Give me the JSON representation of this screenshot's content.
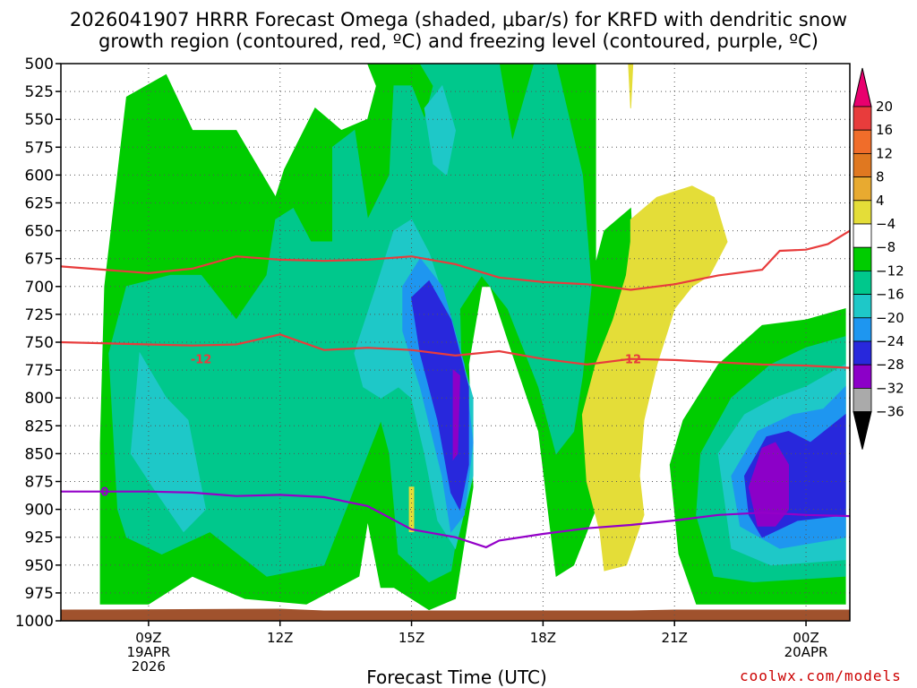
{
  "title_line1": "2026041907 HRRR Forecast Omega (shaded, μbar/s) for KRFD with dendritic snow",
  "title_line2": "growth region (contoured, red, ºC) and freezing level (contoured, purple, ºC)",
  "xlabel": "Forecast Time (UTC)",
  "credit": "coolwx.com/models",
  "chart_data": {
    "type": "heatmap",
    "y_ticks": [
      500,
      525,
      550,
      575,
      600,
      625,
      650,
      675,
      700,
      725,
      750,
      775,
      800,
      825,
      850,
      875,
      900,
      925,
      950,
      975,
      1000
    ],
    "y_inverted": true,
    "ylim": [
      500,
      1000
    ],
    "x_range_hours": [
      7,
      25
    ],
    "x_ticks": [
      {
        "hour": 9,
        "line1": "09Z",
        "line2": "19APR",
        "line3": "2026"
      },
      {
        "hour": 12,
        "line1": "12Z",
        "line2": "",
        "line3": ""
      },
      {
        "hour": 15,
        "line1": "15Z",
        "line2": "",
        "line3": ""
      },
      {
        "hour": 18,
        "line1": "18Z",
        "line2": "",
        "line3": ""
      },
      {
        "hour": 21,
        "line1": "21Z",
        "line2": "",
        "line3": ""
      },
      {
        "hour": 24,
        "line1": "00Z",
        "line2": "20APR",
        "line3": ""
      }
    ],
    "grid": true,
    "colorbar": {
      "position": "right",
      "labels": [
        "20",
        "16",
        "12",
        "8",
        "4",
        "−4",
        "−8",
        "−12",
        "−16",
        "−20",
        "−24",
        "−28",
        "−32",
        "−36"
      ],
      "colors": [
        "#e8006e",
        "#e83c3c",
        "#f06d2a",
        "#e07820",
        "#e8aa30",
        "#e4dd38",
        "#ffffff",
        "#00cc00",
        "#00c88c",
        "#1ec8c8",
        "#1e96f0",
        "#2828dc",
        "#8c00c8",
        "#aaaaaa",
        "#000000"
      ]
    },
    "omega_regions": [
      {
        "level": "-4",
        "color": "#00cc00",
        "points": [
          [
            7.9,
            960
          ],
          [
            7.9,
            840
          ],
          [
            8.0,
            700
          ],
          [
            8.5,
            530
          ],
          [
            9.4,
            510
          ],
          [
            10.0,
            560
          ],
          [
            11.0,
            560
          ],
          [
            11.9,
            620
          ],
          [
            12.1,
            595
          ],
          [
            12.8,
            540
          ],
          [
            13.4,
            560
          ],
          [
            14.0,
            550
          ],
          [
            14.2,
            520
          ],
          [
            14.0,
            500
          ],
          [
            19.2,
            500
          ],
          [
            19.2,
            680
          ],
          [
            19.4,
            650
          ],
          [
            20.0,
            630
          ],
          [
            20.1,
            720
          ],
          [
            19.7,
            820
          ],
          [
            19.2,
            900
          ],
          [
            18.7,
            950
          ],
          [
            18.3,
            960
          ],
          [
            17.9,
            830
          ],
          [
            17.3,
            760
          ],
          [
            16.8,
            700
          ],
          [
            16.6,
            700
          ],
          [
            16.3,
            770
          ],
          [
            16.4,
            880
          ],
          [
            16.0,
            980
          ],
          [
            15.4,
            990
          ],
          [
            14.6,
            970
          ],
          [
            14.3,
            970
          ],
          [
            14.0,
            910
          ],
          [
            13.8,
            960
          ],
          [
            12.6,
            985
          ],
          [
            11.2,
            980
          ],
          [
            10.0,
            960
          ],
          [
            9.0,
            985
          ],
          [
            7.9,
            985
          ]
        ],
        "bounds_note": "broad upward-motion envelope"
      },
      {
        "level": "-4b",
        "color": "#00cc00",
        "points": [
          [
            21.2,
            820
          ],
          [
            22.0,
            770
          ],
          [
            23.0,
            735
          ],
          [
            24.0,
            730
          ],
          [
            24.9,
            720
          ],
          [
            24.9,
            985
          ],
          [
            22.0,
            985
          ],
          [
            21.5,
            985
          ],
          [
            21.1,
            940
          ],
          [
            20.9,
            860
          ]
        ]
      },
      {
        "level": "-8",
        "color": "#00c88c",
        "points": [
          [
            8.3,
            900
          ],
          [
            8.1,
            760
          ],
          [
            8.5,
            700
          ],
          [
            9.5,
            690
          ],
          [
            10.2,
            690
          ],
          [
            11.0,
            730
          ],
          [
            11.7,
            690
          ],
          [
            11.9,
            640
          ],
          [
            12.3,
            630
          ],
          [
            12.7,
            660
          ],
          [
            13.2,
            660
          ],
          [
            13.2,
            575
          ],
          [
            13.7,
            560
          ],
          [
            14.0,
            640
          ],
          [
            14.5,
            600
          ],
          [
            14.6,
            520
          ],
          [
            15.0,
            520
          ],
          [
            15.3,
            550
          ],
          [
            15.5,
            520
          ],
          [
            15.2,
            500
          ],
          [
            17.0,
            500
          ],
          [
            17.3,
            570
          ],
          [
            17.8,
            500
          ],
          [
            18.3,
            500
          ],
          [
            18.9,
            600
          ],
          [
            19.1,
            700
          ],
          [
            18.9,
            780
          ],
          [
            18.7,
            830
          ],
          [
            18.3,
            850
          ],
          [
            17.9,
            790
          ],
          [
            17.2,
            720
          ],
          [
            16.6,
            690
          ],
          [
            16.1,
            720
          ],
          [
            16.2,
            880
          ],
          [
            15.9,
            955
          ],
          [
            15.4,
            965
          ],
          [
            14.7,
            940
          ],
          [
            14.5,
            850
          ],
          [
            14.3,
            820
          ],
          [
            13.9,
            860
          ],
          [
            13.0,
            950
          ],
          [
            11.7,
            960
          ],
          [
            10.4,
            920
          ],
          [
            9.3,
            940
          ],
          [
            8.5,
            925
          ]
        ]
      },
      {
        "level": "-8b",
        "color": "#00c88c",
        "points": [
          [
            21.6,
            850
          ],
          [
            22.3,
            800
          ],
          [
            23.2,
            770
          ],
          [
            24.0,
            755
          ],
          [
            24.9,
            745
          ],
          [
            24.9,
            960
          ],
          [
            22.8,
            965
          ],
          [
            21.9,
            960
          ],
          [
            21.5,
            905
          ]
        ]
      },
      {
        "level": "-12",
        "color": "#1ec8c8",
        "points": [
          [
            8.6,
            850
          ],
          [
            8.8,
            760
          ],
          [
            9.4,
            800
          ],
          [
            9.9,
            820
          ],
          [
            10.3,
            900
          ],
          [
            9.8,
            920
          ],
          [
            9.1,
            880
          ]
        ]
      },
      {
        "level": "-12b",
        "color": "#1ec8c8",
        "points": [
          [
            13.7,
            760
          ],
          [
            14.2,
            700
          ],
          [
            14.6,
            650
          ],
          [
            15.0,
            640
          ],
          [
            15.4,
            670
          ],
          [
            15.9,
            730
          ],
          [
            16.4,
            800
          ],
          [
            16.4,
            870
          ],
          [
            16.0,
            935
          ],
          [
            15.6,
            910
          ],
          [
            15.3,
            850
          ],
          [
            15.0,
            800
          ],
          [
            14.7,
            790
          ],
          [
            14.3,
            800
          ],
          [
            13.9,
            790
          ]
        ]
      },
      {
        "level": "-12c",
        "color": "#1ec8c8",
        "points": [
          [
            15.3,
            540
          ],
          [
            15.7,
            520
          ],
          [
            16.0,
            560
          ],
          [
            15.8,
            600
          ],
          [
            15.5,
            590
          ]
        ]
      },
      {
        "level": "-12d",
        "color": "#1ec8c8",
        "points": [
          [
            22.0,
            850
          ],
          [
            22.6,
            815
          ],
          [
            23.3,
            800
          ],
          [
            24.0,
            790
          ],
          [
            24.9,
            770
          ],
          [
            24.9,
            945
          ],
          [
            23.2,
            950
          ],
          [
            22.3,
            935
          ]
        ]
      },
      {
        "level": "-16",
        "color": "#1e96f0",
        "points": [
          [
            14.8,
            700
          ],
          [
            15.2,
            675
          ],
          [
            15.7,
            700
          ],
          [
            16.2,
            770
          ],
          [
            16.4,
            840
          ],
          [
            16.2,
            905
          ],
          [
            15.9,
            920
          ],
          [
            15.7,
            870
          ],
          [
            15.2,
            790
          ],
          [
            14.8,
            740
          ]
        ]
      },
      {
        "level": "-16b",
        "color": "#1e96f0",
        "points": [
          [
            22.3,
            870
          ],
          [
            22.9,
            830
          ],
          [
            23.7,
            815
          ],
          [
            24.4,
            810
          ],
          [
            24.9,
            790
          ],
          [
            24.9,
            925
          ],
          [
            23.4,
            935
          ],
          [
            22.5,
            915
          ]
        ]
      },
      {
        "level": "-20",
        "color": "#2828dc",
        "points": [
          [
            15.0,
            710
          ],
          [
            15.4,
            695
          ],
          [
            15.9,
            730
          ],
          [
            16.3,
            790
          ],
          [
            16.3,
            860
          ],
          [
            16.1,
            900
          ],
          [
            15.9,
            885
          ],
          [
            15.6,
            820
          ],
          [
            15.2,
            760
          ]
        ]
      },
      {
        "level": "-20b",
        "color": "#2828dc",
        "points": [
          [
            22.6,
            870
          ],
          [
            23.1,
            835
          ],
          [
            23.6,
            830
          ],
          [
            24.1,
            840
          ],
          [
            24.9,
            815
          ],
          [
            24.9,
            905
          ],
          [
            23.8,
            910
          ],
          [
            23.0,
            925
          ],
          [
            22.7,
            905
          ]
        ]
      },
      {
        "level": "-24",
        "color": "#8c00c8",
        "points": [
          [
            15.95,
            775
          ],
          [
            16.1,
            780
          ],
          [
            16.05,
            850
          ],
          [
            15.95,
            855
          ]
        ]
      },
      {
        "level": "-24b",
        "color": "#8c00c8",
        "points": [
          [
            22.7,
            880
          ],
          [
            23.0,
            845
          ],
          [
            23.3,
            840
          ],
          [
            23.6,
            860
          ],
          [
            23.6,
            900
          ],
          [
            23.3,
            915
          ],
          [
            22.9,
            915
          ]
        ]
      }
    ],
    "positive_regions": [
      {
        "level": "4",
        "color": "#e4dd38",
        "points": [
          [
            20.0,
            640
          ],
          [
            20.6,
            620
          ],
          [
            21.4,
            610
          ],
          [
            21.9,
            620
          ],
          [
            22.2,
            660
          ],
          [
            21.8,
            690
          ],
          [
            21.4,
            700
          ],
          [
            21.0,
            720
          ],
          [
            20.6,
            770
          ],
          [
            20.3,
            820
          ],
          [
            20.2,
            870
          ],
          [
            20.3,
            905
          ],
          [
            19.9,
            950
          ],
          [
            19.4,
            955
          ],
          [
            19.3,
            920
          ],
          [
            19.0,
            875
          ],
          [
            18.9,
            815
          ],
          [
            19.2,
            770
          ],
          [
            19.6,
            730
          ],
          [
            19.9,
            690
          ],
          [
            20.0,
            660
          ]
        ]
      },
      {
        "level": "4b",
        "color": "#e4dd38",
        "points": [
          [
            19.95,
            500
          ],
          [
            20.05,
            500
          ],
          [
            20.0,
            540
          ]
        ]
      },
      {
        "level": "4c",
        "color": "#e4dd38",
        "points": [
          [
            14.95,
            880
          ],
          [
            15.05,
            880
          ],
          [
            15.05,
            920
          ],
          [
            14.95,
            920
          ]
        ]
      }
    ],
    "dgz_contours": [
      {
        "label": "-12",
        "label_at_hour": 20.0,
        "color": "#e83c3c",
        "points": [
          [
            7,
            750
          ],
          [
            9,
            752
          ],
          [
            10,
            753
          ],
          [
            11,
            752
          ],
          [
            12,
            743
          ],
          [
            13,
            757
          ],
          [
            14,
            755
          ],
          [
            15,
            757
          ],
          [
            16,
            762
          ],
          [
            17,
            758
          ],
          [
            18,
            765
          ],
          [
            19,
            770
          ],
          [
            20,
            765
          ],
          [
            21,
            766
          ],
          [
            22,
            768
          ],
          [
            23,
            770
          ],
          [
            24,
            771
          ],
          [
            25,
            773
          ]
        ]
      },
      {
        "label": "",
        "label_at_hour": null,
        "color": "#e83c3c",
        "points": [
          [
            7,
            682
          ],
          [
            9,
            688
          ],
          [
            10,
            684
          ],
          [
            11,
            673
          ],
          [
            12,
            676
          ],
          [
            13,
            677
          ],
          [
            14,
            676
          ],
          [
            15,
            673
          ],
          [
            16,
            680
          ],
          [
            17,
            692
          ],
          [
            18,
            696
          ],
          [
            19,
            698
          ],
          [
            20,
            703
          ],
          [
            21,
            698
          ],
          [
            22,
            690
          ],
          [
            23,
            685
          ],
          [
            23.4,
            668
          ],
          [
            24,
            667
          ],
          [
            24.5,
            662
          ],
          [
            25,
            650
          ]
        ]
      }
    ],
    "freezing_contour": {
      "label": "0",
      "color": "#9400c8",
      "points": [
        [
          7,
          884
        ],
        [
          9,
          884
        ],
        [
          10,
          885
        ],
        [
          11,
          888
        ],
        [
          12,
          887
        ],
        [
          13,
          889
        ],
        [
          14,
          897
        ],
        [
          15,
          918
        ],
        [
          16,
          925
        ],
        [
          16.7,
          934
        ],
        [
          17,
          928
        ],
        [
          18,
          922
        ],
        [
          19,
          917
        ],
        [
          20,
          914
        ],
        [
          21,
          910
        ],
        [
          22,
          905
        ],
        [
          23,
          903
        ],
        [
          24,
          905
        ],
        [
          25,
          906
        ]
      ]
    },
    "terrain_fill": {
      "color": "#a0522d",
      "top_level": 990
    }
  }
}
